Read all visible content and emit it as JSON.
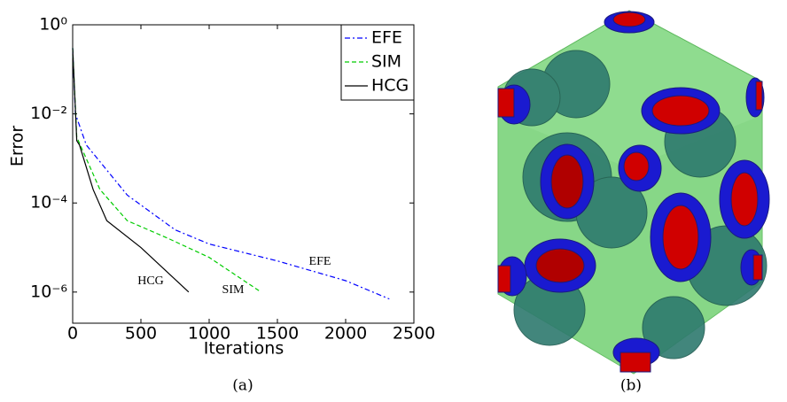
{
  "chart_data": {
    "type": "line",
    "xlabel": "Iterations",
    "ylabel": "Error",
    "log_y": true,
    "xlim": [
      0,
      2500
    ],
    "xticks": [
      0,
      500,
      1000,
      1500,
      2000,
      2500
    ],
    "ylim": [
      2e-07,
      1
    ],
    "yticks": [
      {
        "value": 1,
        "label": "10⁰"
      },
      {
        "value": 0.01,
        "label": "10⁻²"
      },
      {
        "value": 0.0001,
        "label": "10⁻⁴"
      },
      {
        "value": 1e-06,
        "label": "10⁻⁶"
      }
    ],
    "legend": "upper right",
    "series": [
      {
        "name": "EFE",
        "color": "#0000ff",
        "linestyle": "dashdot",
        "x": [
          0,
          20,
          100,
          400,
          750,
          1000,
          1500,
          2000,
          2320
        ],
        "values": [
          0.3,
          0.01,
          0.002,
          0.00015,
          2.5e-05,
          1.2e-05,
          5e-06,
          1.8e-06,
          7e-07
        ]
      },
      {
        "name": "SIM",
        "color": "#00cc00",
        "linestyle": "dashed",
        "x": [
          0,
          30,
          200,
          400,
          700,
          1000,
          1380
        ],
        "values": [
          0.3,
          0.003,
          0.0002,
          4e-05,
          1.6e-05,
          6e-06,
          1e-06
        ]
      },
      {
        "name": "HCG",
        "color": "#000000",
        "linestyle": "solid",
        "x": [
          0,
          30,
          50,
          150,
          250,
          500,
          850
        ],
        "values": [
          0.3,
          0.0025,
          0.002,
          0.0002,
          4e-05,
          1e-05,
          1e-06
        ]
      }
    ],
    "annotations": [
      "EFE",
      "SIM",
      "HCG"
    ]
  },
  "captions": [
    "(a)",
    "(b)"
  ]
}
